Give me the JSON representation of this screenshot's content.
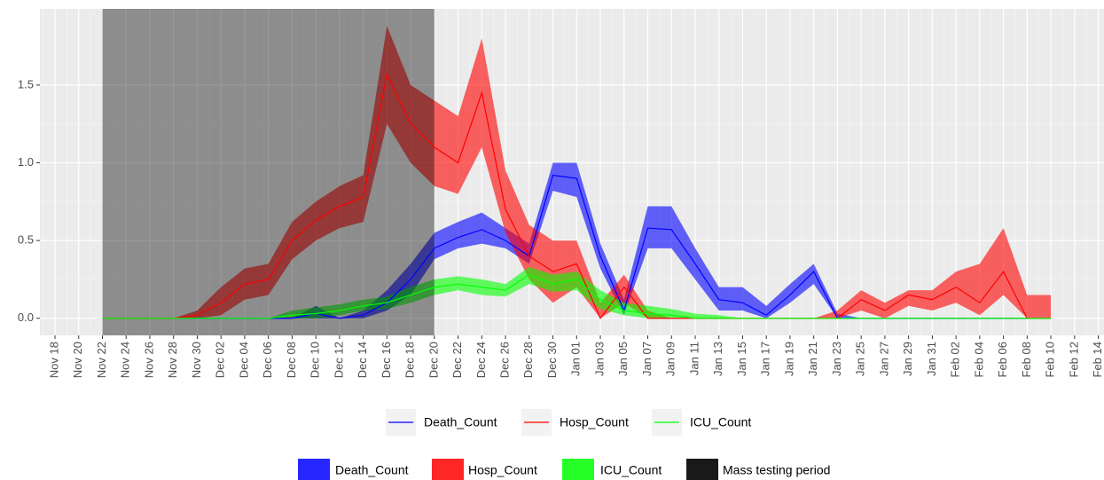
{
  "chart_data": {
    "type": "line",
    "categories": [
      "Nov 18",
      "Nov 20",
      "Nov 22",
      "Nov 24",
      "Nov 26",
      "Nov 28",
      "Nov 30",
      "Dec 02",
      "Dec 04",
      "Dec 06",
      "Dec 08",
      "Dec 10",
      "Dec 12",
      "Dec 14",
      "Dec 16",
      "Dec 18",
      "Dec 20",
      "Dec 22",
      "Dec 24",
      "Dec 26",
      "Dec 28",
      "Dec 30",
      "Jan 01",
      "Jan 03",
      "Jan 05",
      "Jan 07",
      "Jan 09",
      "Jan 11",
      "Jan 13",
      "Jan 15",
      "Jan 17",
      "Jan 19",
      "Jan 21",
      "Jan 23",
      "Jan 25",
      "Jan 27",
      "Jan 29",
      "Jan 31",
      "Feb 02",
      "Feb 04",
      "Feb 06",
      "Feb 08",
      "Feb 10",
      "Feb 12",
      "Feb 14"
    ],
    "ylim": [
      -0.11,
      1.99
    ],
    "yticks": [
      {
        "value": 0,
        "label": "0.0"
      },
      0.5,
      {
        "value": 1,
        "label": "1.0"
      },
      1.5
    ],
    "grid": true,
    "series": [
      {
        "name": "Death_Count",
        "color": "#0000ff",
        "values": [
          null,
          null,
          0,
          0,
          0,
          0,
          0,
          0,
          0,
          0,
          0,
          0.03,
          0,
          0.02,
          0.1,
          0.25,
          0.45,
          0.52,
          0.57,
          0.5,
          0.4,
          0.92,
          0.9,
          0.4,
          0.05,
          0.58,
          0.57,
          0.35,
          0.12,
          0.1,
          0.02,
          0.15,
          0.3,
          0,
          0,
          0,
          0,
          0,
          0,
          0,
          0,
          0,
          0,
          null,
          null
        ],
        "lower": [
          null,
          null,
          0,
          0,
          0,
          0,
          0,
          0,
          0,
          0,
          0,
          0,
          0,
          0,
          0.05,
          0.15,
          0.38,
          0.45,
          0.48,
          0.45,
          0.35,
          0.82,
          0.78,
          0.32,
          0.02,
          0.45,
          0.45,
          0.25,
          0.05,
          0.05,
          0,
          0.1,
          0.22,
          0,
          0,
          0,
          0,
          0,
          0,
          0,
          0,
          0,
          0,
          null,
          null
        ],
        "upper": [
          null,
          null,
          0,
          0,
          0,
          0,
          0,
          0,
          0,
          0,
          0,
          0.08,
          0,
          0.05,
          0.18,
          0.35,
          0.55,
          0.62,
          0.68,
          0.58,
          0.48,
          1.0,
          1.0,
          0.48,
          0.12,
          0.72,
          0.72,
          0.45,
          0.2,
          0.2,
          0.08,
          0.22,
          0.35,
          0.03,
          0,
          0,
          0,
          0,
          0,
          0,
          0,
          0,
          0,
          null,
          null
        ]
      },
      {
        "name": "Hosp_Count",
        "color": "#ff0000",
        "values": [
          null,
          null,
          0,
          0,
          0,
          0,
          0.02,
          0.1,
          0.22,
          0.25,
          0.5,
          0.63,
          0.72,
          0.78,
          1.57,
          1.25,
          1.1,
          1.0,
          1.45,
          0.7,
          0.4,
          0.3,
          0.35,
          0,
          0.2,
          0,
          0,
          0,
          0,
          0,
          0,
          0,
          0,
          0,
          0.12,
          0.05,
          0.15,
          0.12,
          0.2,
          0.1,
          0.3,
          0,
          0,
          null,
          null
        ],
        "lower": [
          null,
          null,
          0,
          0,
          0,
          0,
          0,
          0.02,
          0.12,
          0.15,
          0.38,
          0.5,
          0.58,
          0.62,
          1.25,
          1.0,
          0.85,
          0.8,
          1.1,
          0.55,
          0.25,
          0.1,
          0.2,
          0,
          0.1,
          0,
          0,
          0,
          0,
          0,
          0,
          0,
          0,
          0,
          0.05,
          0,
          0.08,
          0.05,
          0.1,
          0.02,
          0.15,
          0,
          0,
          null,
          null
        ],
        "upper": [
          null,
          null,
          0,
          0,
          0,
          0,
          0.05,
          0.2,
          0.32,
          0.35,
          0.62,
          0.75,
          0.85,
          0.92,
          1.88,
          1.5,
          1.4,
          1.3,
          1.8,
          0.95,
          0.6,
          0.5,
          0.5,
          0.1,
          0.28,
          0.05,
          0,
          0,
          0,
          0,
          0,
          0,
          0,
          0.05,
          0.18,
          0.1,
          0.18,
          0.18,
          0.3,
          0.35,
          0.58,
          0.15,
          0.15,
          null,
          null
        ]
      },
      {
        "name": "ICU_Count",
        "color": "#00ff00",
        "values": [
          null,
          null,
          0,
          0,
          0,
          0,
          0,
          0,
          0,
          0,
          0.02,
          0.03,
          0.05,
          0.08,
          0.1,
          0.15,
          0.2,
          0.22,
          0.2,
          0.18,
          0.28,
          0.22,
          0.25,
          0.12,
          0.05,
          0.03,
          0.02,
          0,
          0,
          0,
          0,
          0,
          0,
          0,
          0,
          0,
          0,
          0,
          0,
          0,
          0,
          0,
          0,
          null,
          null
        ],
        "lower": [
          null,
          null,
          0,
          0,
          0,
          0,
          0,
          0,
          0,
          0,
          0,
          0,
          0.02,
          0.05,
          0.06,
          0.1,
          0.15,
          0.18,
          0.15,
          0.14,
          0.22,
          0.17,
          0.18,
          0.06,
          0.02,
          0,
          0,
          0,
          0,
          0,
          0,
          0,
          0,
          0,
          0,
          0,
          0,
          0,
          0,
          0,
          0,
          0,
          0,
          null,
          null
        ],
        "upper": [
          null,
          null,
          0,
          0,
          0,
          0,
          0,
          0,
          0,
          0,
          0.05,
          0.07,
          0.09,
          0.12,
          0.14,
          0.2,
          0.25,
          0.27,
          0.25,
          0.22,
          0.33,
          0.28,
          0.3,
          0.18,
          0.1,
          0.08,
          0.06,
          0.03,
          0.02,
          0,
          0,
          0,
          0,
          0,
          0,
          0,
          0,
          0,
          0,
          0,
          0,
          0,
          0,
          null,
          null
        ]
      }
    ],
    "shade": {
      "name": "Mass testing period",
      "color": "#000000",
      "from": "Nov 22",
      "to": "Dec 20"
    }
  }
}
